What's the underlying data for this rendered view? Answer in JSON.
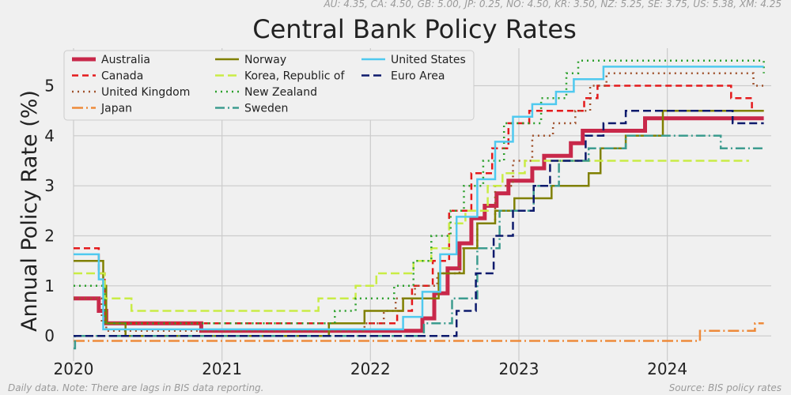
{
  "header_note": "AU: 4.35, CA: 4.50, GB: 5.00, JP: 0.25, NO: 4.50, KR: 3.50, NZ: 5.25, SE: 3.75, US: 5.38, XM: 4.25",
  "footer_left": "Daily data.  Note: There are lags in BIS data reporting.",
  "footer_right": "Source: BIS policy rates",
  "chart_data": {
    "type": "line",
    "title": "Central Bank Policy Rates",
    "xlabel": "",
    "ylabel": "Annual Policy Rate (%)",
    "xlim": [
      2020.0,
      2024.7
    ],
    "ylim": [
      -0.25,
      5.75
    ],
    "x_ticks": [
      2020,
      2021,
      2022,
      2023,
      2024
    ],
    "x_tick_labels": [
      "2020",
      "2021",
      "2022",
      "2023",
      "2024"
    ],
    "y_ticks": [
      0,
      1,
      2,
      3,
      4,
      5
    ],
    "y_tick_labels": [
      "0",
      "1",
      "2",
      "3",
      "4",
      "5"
    ],
    "grid": true,
    "legend_placement": "top-left",
    "legend_columns": 3,
    "series": [
      {
        "name": "Australia",
        "color": "#c8284a",
        "dash": "solid",
        "width": 5,
        "points": [
          [
            2020.0,
            0.75
          ],
          [
            2020.17,
            0.5
          ],
          [
            2020.22,
            0.25
          ],
          [
            2020.86,
            0.1
          ],
          [
            2022.35,
            0.35
          ],
          [
            2022.43,
            0.85
          ],
          [
            2022.52,
            1.35
          ],
          [
            2022.6,
            1.85
          ],
          [
            2022.68,
            2.35
          ],
          [
            2022.77,
            2.6
          ],
          [
            2022.85,
            2.85
          ],
          [
            2022.93,
            3.1
          ],
          [
            2023.09,
            3.35
          ],
          [
            2023.17,
            3.6
          ],
          [
            2023.35,
            3.85
          ],
          [
            2023.43,
            4.1
          ],
          [
            2023.85,
            4.35
          ],
          [
            2024.65,
            4.35
          ]
        ]
      },
      {
        "name": "Canada",
        "color": "#e41a1c",
        "dash": "8,5",
        "width": 2.5,
        "points": [
          [
            2020.0,
            1.75
          ],
          [
            2020.17,
            1.25
          ],
          [
            2020.21,
            0.25
          ],
          [
            2022.18,
            0.5
          ],
          [
            2022.28,
            1.0
          ],
          [
            2022.42,
            1.5
          ],
          [
            2022.53,
            2.5
          ],
          [
            2022.68,
            3.25
          ],
          [
            2022.82,
            3.75
          ],
          [
            2022.93,
            4.25
          ],
          [
            2023.07,
            4.5
          ],
          [
            2023.44,
            4.75
          ],
          [
            2023.53,
            5.0
          ],
          [
            2024.43,
            4.75
          ],
          [
            2024.57,
            4.5
          ],
          [
            2024.65,
            4.5
          ]
        ]
      },
      {
        "name": "United Kingdom",
        "color": "#a0522d",
        "dash": "2,5",
        "width": 2.5,
        "points": [
          [
            2020.0,
            0.75
          ],
          [
            2020.19,
            0.25
          ],
          [
            2020.22,
            0.1
          ],
          [
            2021.96,
            0.25
          ],
          [
            2022.09,
            0.5
          ],
          [
            2022.17,
            0.75
          ],
          [
            2022.3,
            1.0
          ],
          [
            2022.45,
            1.25
          ],
          [
            2022.6,
            1.75
          ],
          [
            2022.72,
            2.25
          ],
          [
            2022.84,
            3.0
          ],
          [
            2022.96,
            3.5
          ],
          [
            2023.09,
            4.0
          ],
          [
            2023.23,
            4.25
          ],
          [
            2023.38,
            4.5
          ],
          [
            2023.48,
            5.0
          ],
          [
            2023.59,
            5.25
          ],
          [
            2024.58,
            5.0
          ],
          [
            2024.65,
            5.0
          ]
        ]
      },
      {
        "name": "Japan",
        "color": "#ee8a3a",
        "dash": "14,4,2,4",
        "width": 2.5,
        "points": [
          [
            2020.0,
            -0.1
          ],
          [
            2024.22,
            -0.1
          ],
          [
            2024.22,
            0.1
          ],
          [
            2024.57,
            0.1
          ],
          [
            2024.59,
            0.25
          ],
          [
            2024.65,
            0.25
          ]
        ]
      },
      {
        "name": "Norway",
        "color": "#808000",
        "dash": "solid",
        "width": 2.5,
        "points": [
          [
            2020.0,
            1.5
          ],
          [
            2020.2,
            1.0
          ],
          [
            2020.22,
            0.25
          ],
          [
            2020.35,
            0.0
          ],
          [
            2021.72,
            0.25
          ],
          [
            2021.96,
            0.5
          ],
          [
            2022.22,
            0.75
          ],
          [
            2022.46,
            1.25
          ],
          [
            2022.63,
            1.75
          ],
          [
            2022.72,
            2.25
          ],
          [
            2022.84,
            2.5
          ],
          [
            2022.97,
            2.75
          ],
          [
            2023.22,
            3.0
          ],
          [
            2023.47,
            3.25
          ],
          [
            2023.55,
            3.75
          ],
          [
            2023.72,
            4.0
          ],
          [
            2023.97,
            4.5
          ],
          [
            2024.65,
            4.5
          ]
        ]
      },
      {
        "name": "Korea, Republic of",
        "color": "#c9ec45",
        "dash": "11,5",
        "width": 2.5,
        "points": [
          [
            2020.0,
            1.25
          ],
          [
            2020.21,
            0.75
          ],
          [
            2020.39,
            0.5
          ],
          [
            2021.65,
            0.75
          ],
          [
            2021.9,
            1.0
          ],
          [
            2022.04,
            1.25
          ],
          [
            2022.29,
            1.5
          ],
          [
            2022.41,
            1.75
          ],
          [
            2022.53,
            2.25
          ],
          [
            2022.64,
            2.5
          ],
          [
            2022.79,
            3.0
          ],
          [
            2022.89,
            3.25
          ],
          [
            2023.04,
            3.5
          ],
          [
            2024.55,
            3.5
          ]
        ]
      },
      {
        "name": "New Zealand",
        "color": "#2ca02c",
        "dash": "2,5",
        "width": 2.5,
        "points": [
          [
            2020.0,
            1.0
          ],
          [
            2020.21,
            0.25
          ],
          [
            2021.76,
            0.5
          ],
          [
            2021.9,
            0.75
          ],
          [
            2022.16,
            1.0
          ],
          [
            2022.29,
            1.5
          ],
          [
            2022.41,
            2.0
          ],
          [
            2022.54,
            2.5
          ],
          [
            2022.63,
            3.0
          ],
          [
            2022.76,
            3.5
          ],
          [
            2022.9,
            4.25
          ],
          [
            2023.15,
            4.75
          ],
          [
            2023.32,
            5.25
          ],
          [
            2023.4,
            5.5
          ],
          [
            2024.65,
            5.25
          ]
        ]
      },
      {
        "name": "Sweden",
        "color": "#3d9c8f",
        "dash": "12,4,2,4",
        "width": 2.5,
        "points": [
          [
            2020.0,
            -0.25
          ],
          [
            2020.01,
            0.0
          ],
          [
            2022.36,
            0.25
          ],
          [
            2022.55,
            0.75
          ],
          [
            2022.72,
            1.75
          ],
          [
            2022.87,
            2.5
          ],
          [
            2023.1,
            3.0
          ],
          [
            2023.27,
            3.5
          ],
          [
            2023.47,
            3.75
          ],
          [
            2023.72,
            4.0
          ],
          [
            2024.36,
            3.75
          ],
          [
            2024.65,
            3.75
          ]
        ]
      },
      {
        "name": "United States",
        "color": "#4fc9ef",
        "dash": "solid",
        "width": 2.5,
        "points": [
          [
            2020.0,
            1.63
          ],
          [
            2020.17,
            1.13
          ],
          [
            2020.2,
            0.13
          ],
          [
            2022.22,
            0.38
          ],
          [
            2022.35,
            0.88
          ],
          [
            2022.47,
            1.63
          ],
          [
            2022.58,
            2.38
          ],
          [
            2022.72,
            3.13
          ],
          [
            2022.84,
            3.88
          ],
          [
            2022.96,
            4.38
          ],
          [
            2023.09,
            4.63
          ],
          [
            2023.25,
            4.88
          ],
          [
            2023.37,
            5.13
          ],
          [
            2023.57,
            5.38
          ],
          [
            2024.65,
            5.38
          ]
        ]
      },
      {
        "name": "Euro Area",
        "color": "#0d1a6c",
        "dash": "10,5",
        "width": 2.5,
        "points": [
          [
            2020.0,
            0.0
          ],
          [
            2022.58,
            0.5
          ],
          [
            2022.71,
            1.25
          ],
          [
            2022.83,
            2.0
          ],
          [
            2022.96,
            2.5
          ],
          [
            2023.1,
            3.0
          ],
          [
            2023.21,
            3.5
          ],
          [
            2023.45,
            4.0
          ],
          [
            2023.57,
            4.25
          ],
          [
            2023.72,
            4.5
          ],
          [
            2024.44,
            4.25
          ],
          [
            2024.65,
            4.25
          ]
        ]
      }
    ]
  }
}
